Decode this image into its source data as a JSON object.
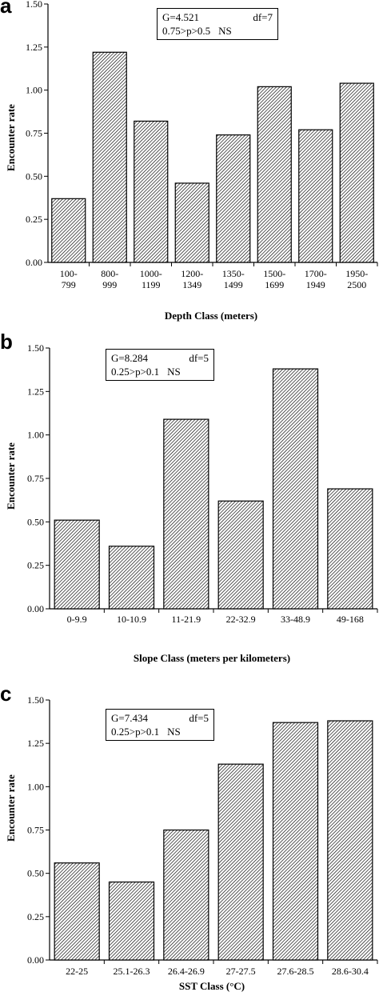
{
  "chart_data": [
    {
      "panel": "a",
      "type": "bar",
      "ylabel": "Encounter rate",
      "xlabel": "Depth Class (meters)",
      "ylim": [
        0,
        1.5
      ],
      "yticks": [
        "0.00",
        "0.25",
        "0.50",
        "0.75",
        "1.00",
        "1.25",
        "1.50"
      ],
      "categories": [
        [
          "100-",
          "799"
        ],
        [
          "800-",
          "999"
        ],
        [
          "1000-",
          "1199"
        ],
        [
          "1200-",
          "1349"
        ],
        [
          "1350-",
          "1499"
        ],
        [
          "1500-",
          "1699"
        ],
        [
          "1700-",
          "1949"
        ],
        [
          "1950-",
          "2500"
        ]
      ],
      "values": [
        0.37,
        1.22,
        0.82,
        0.46,
        0.74,
        1.02,
        0.77,
        1.04
      ],
      "stats": {
        "g": "G=4.521",
        "df": "df=7",
        "p": "0.75>p>0.5",
        "sig": "NS"
      }
    },
    {
      "panel": "b",
      "type": "bar",
      "ylabel": "Encounter rate",
      "xlabel": "Slope Class (meters per kilometers)",
      "ylim": [
        0,
        1.5
      ],
      "yticks": [
        "0.00",
        "0.25",
        "0.50",
        "0.75",
        "1.00",
        "1.25",
        "1.50"
      ],
      "categories": [
        [
          "0-9.9"
        ],
        [
          "10-10.9"
        ],
        [
          "11-21.9"
        ],
        [
          "22-32.9"
        ],
        [
          "33-48.9"
        ],
        [
          "49-168"
        ]
      ],
      "values": [
        0.51,
        0.36,
        1.09,
        0.62,
        1.38,
        0.69
      ],
      "stats": {
        "g": "G=8.284",
        "df": "df=5",
        "p": "0.25>p>0.1",
        "sig": "NS"
      }
    },
    {
      "panel": "c",
      "type": "bar",
      "ylabel": "Encounter rate",
      "xlabel": "SST Class (°C)",
      "ylim": [
        0,
        1.5
      ],
      "yticks": [
        "0.00",
        "0.25",
        "0.50",
        "0.75",
        "1.00",
        "1.25",
        "1.50"
      ],
      "categories": [
        [
          "22-25"
        ],
        [
          "25.1-26.3"
        ],
        [
          "26.4-26.9"
        ],
        [
          "27-27.5"
        ],
        [
          "27.6-28.5"
        ],
        [
          "28.6-30.4"
        ]
      ],
      "values": [
        0.56,
        0.45,
        0.75,
        1.13,
        1.37,
        1.38
      ],
      "stats": {
        "g": "G=7.434",
        "df": "df=5",
        "p": "0.25>p>0.1",
        "sig": "NS"
      }
    }
  ],
  "colors": {
    "bar_fill_pattern": "#000000",
    "bar_background": "#ffffff",
    "axis": "#000000"
  }
}
